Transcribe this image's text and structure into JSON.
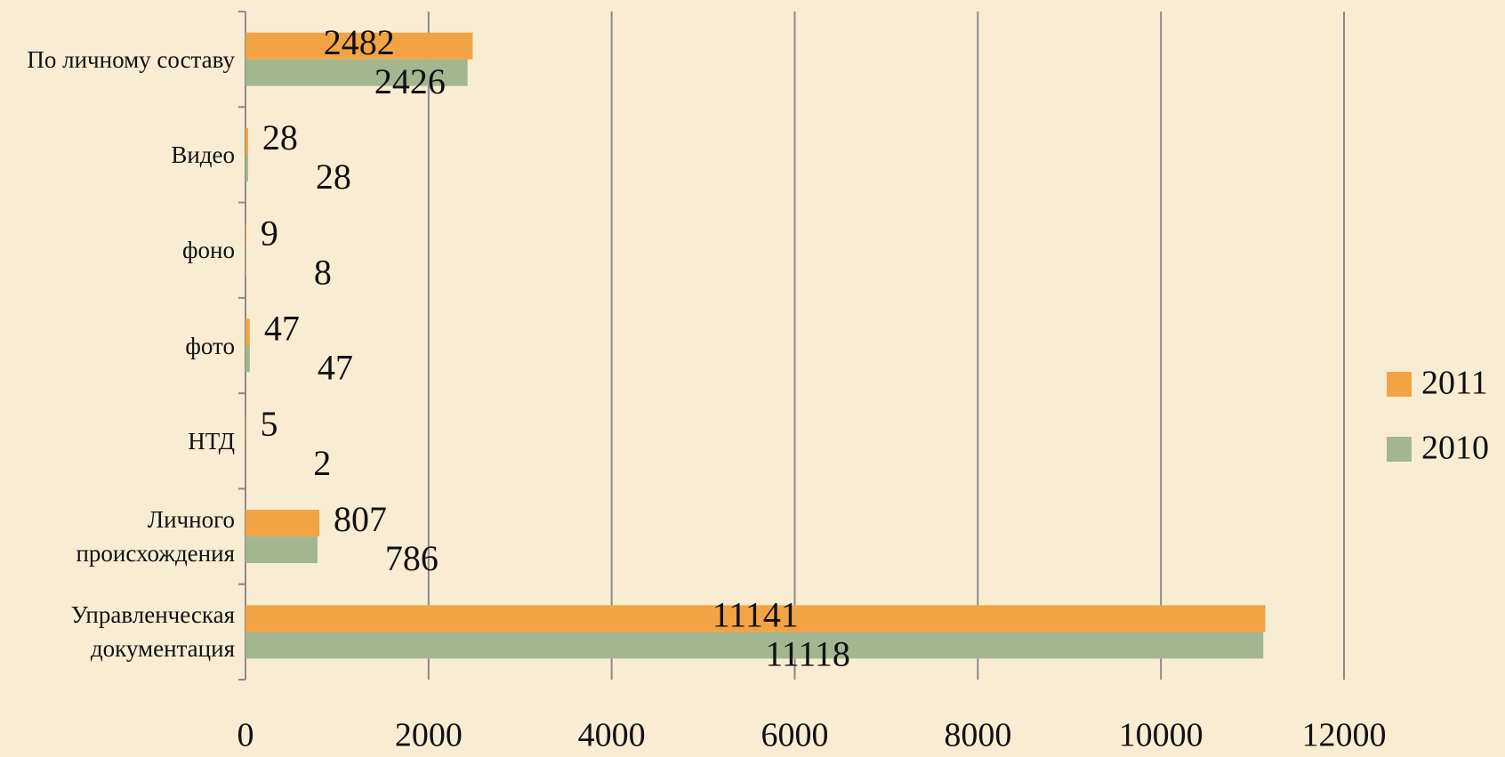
{
  "chart_data": {
    "type": "barh",
    "categories": [
      "По личному составу",
      "Видео",
      "фоно",
      "фото",
      "НТД",
      "Личного происхождения",
      "Управленческая документация"
    ],
    "series": [
      {
        "name": "2011",
        "color": "#f2a444",
        "values": [
          2482,
          28,
          9,
          47,
          5,
          807,
          11141
        ]
      },
      {
        "name": "2010",
        "color": "#a3b690",
        "values": [
          2426,
          28,
          8,
          47,
          2,
          786,
          11118
        ]
      }
    ],
    "xlim": [
      0,
      12000
    ],
    "xticks": [
      0,
      2000,
      4000,
      6000,
      8000,
      10000,
      12000
    ],
    "grid": true,
    "legend": "right"
  }
}
